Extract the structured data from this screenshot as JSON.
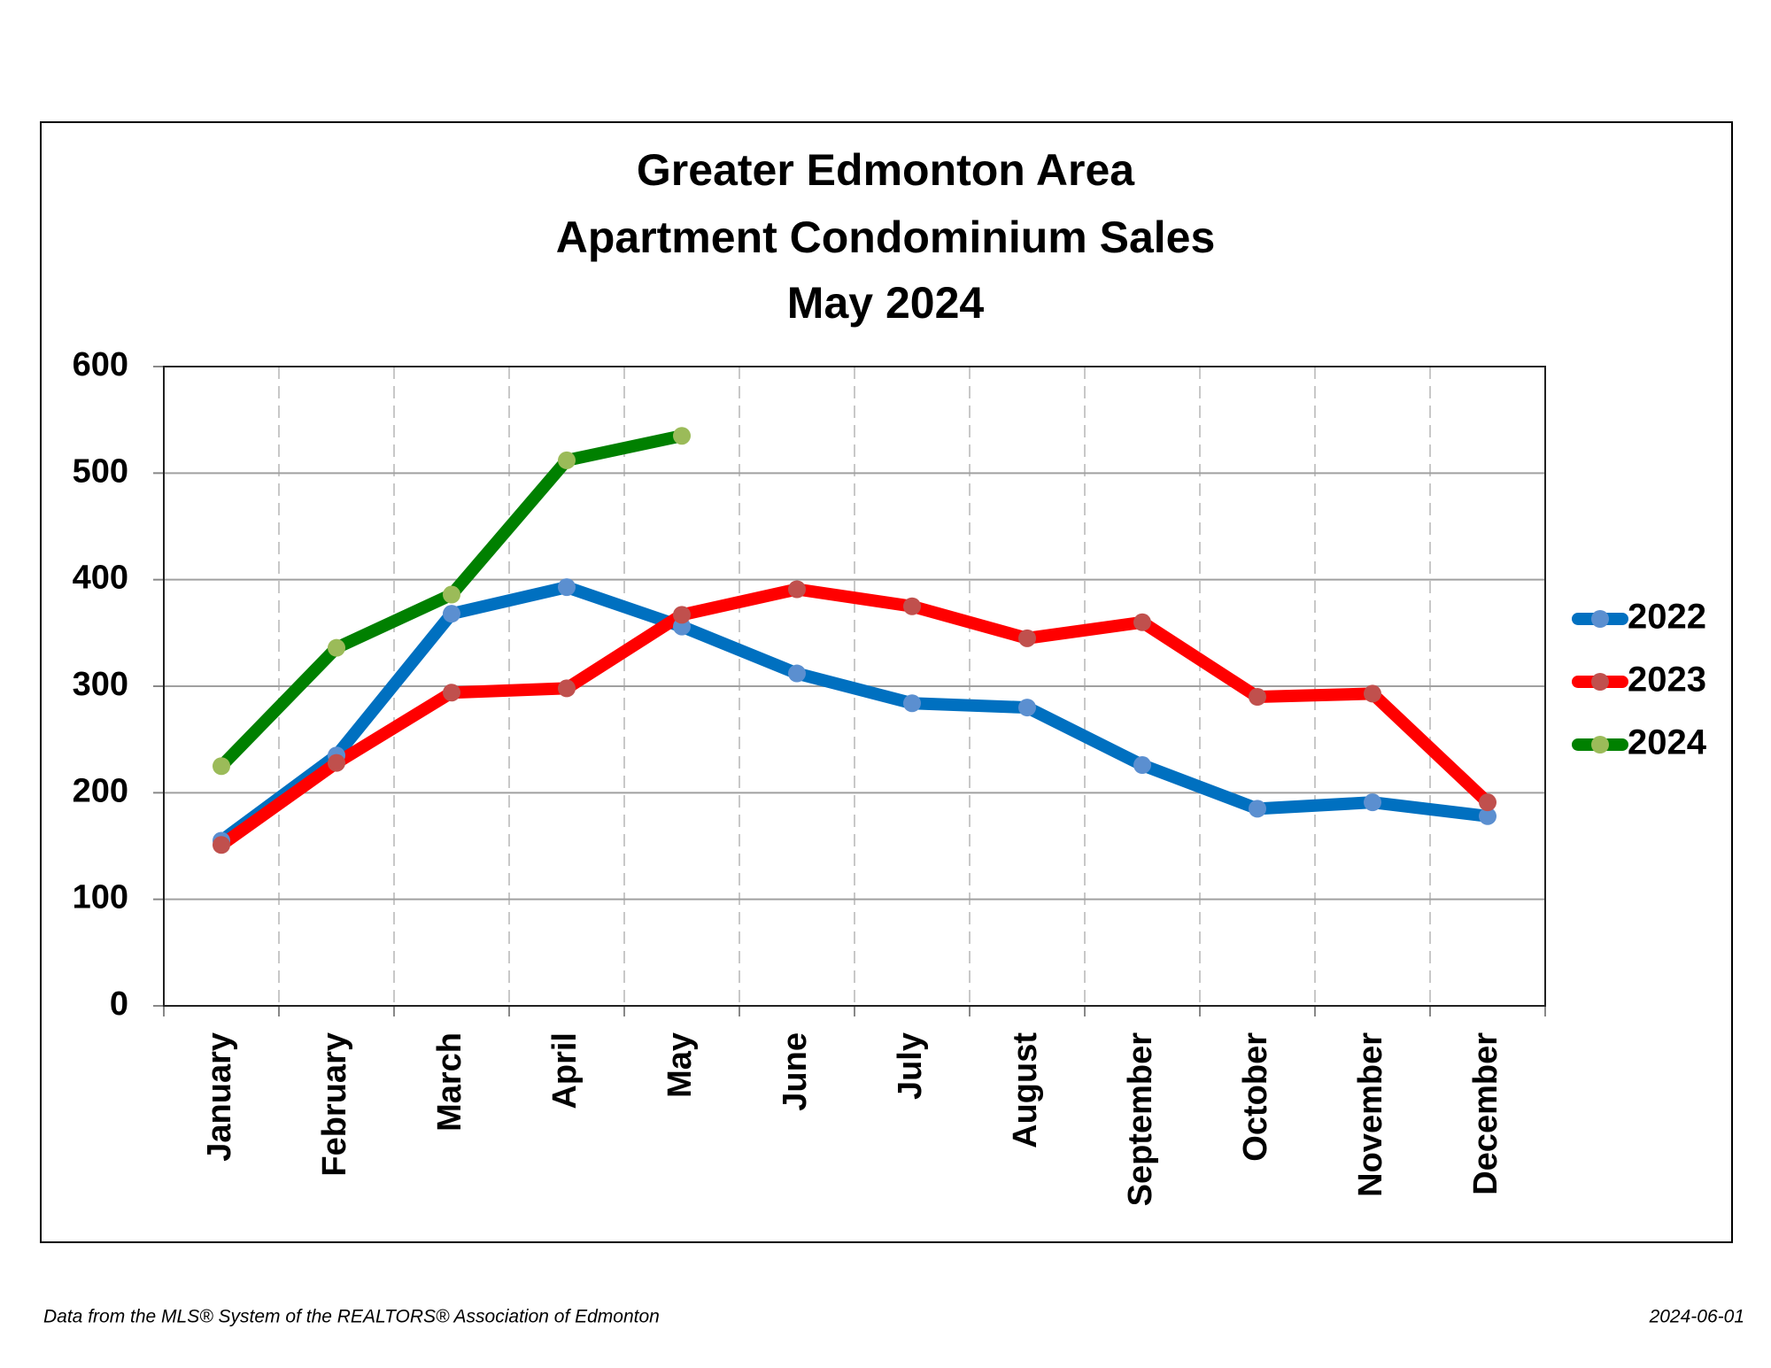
{
  "chart_data": {
    "type": "line",
    "title": [
      "Greater Edmonton Area",
      "Apartment Condominium Sales",
      "May 2024"
    ],
    "categories": [
      "January",
      "February",
      "March",
      "April",
      "May",
      "June",
      "July",
      "August",
      "September",
      "October",
      "November",
      "December"
    ],
    "series": [
      {
        "name": "2022",
        "color": "#0070c0",
        "marker_color": "#5b8fd0",
        "values": [
          155,
          235,
          368,
          393,
          356,
          312,
          284,
          280,
          226,
          185,
          191,
          178
        ]
      },
      {
        "name": "2023",
        "color": "#ff0000",
        "marker_color": "#c0504d",
        "values": [
          151,
          228,
          294,
          298,
          367,
          391,
          375,
          345,
          360,
          290,
          293,
          191
        ]
      },
      {
        "name": "2024",
        "color": "#008000",
        "marker_color": "#9bbb59",
        "values": [
          225,
          336,
          386,
          512,
          535,
          null,
          null,
          null,
          null,
          null,
          null,
          null
        ]
      }
    ],
    "ylim": [
      0,
      600
    ],
    "yticks": [
      0,
      100,
      200,
      300,
      400,
      500,
      600
    ],
    "grid": true,
    "legend": "right",
    "source": "Data from the MLS® System of the REALTORS® Association of Edmonton",
    "date": "2024-06-01"
  }
}
